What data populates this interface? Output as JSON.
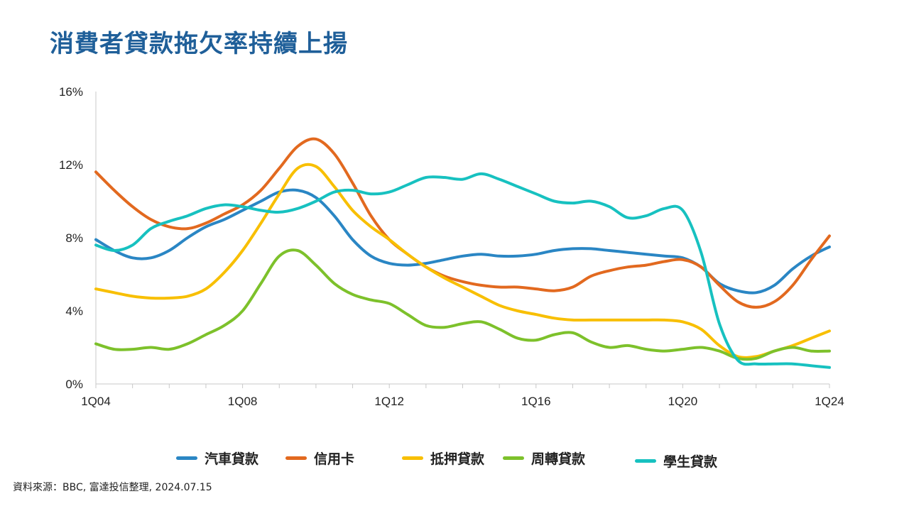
{
  "title": "消費者貸款拖欠率持續上揚",
  "source": "資料來源：BBC, 富達投信整理, 2024.07.15",
  "colors": {
    "auto": "#2a86c4",
    "credit": "#e2691f",
    "mortgage": "#f8bf00",
    "heloc": "#7dc12b",
    "student": "#17c1c0"
  },
  "chart_data": {
    "type": "line",
    "title": "",
    "xlabel": "",
    "ylabel": "",
    "ylim": [
      0,
      16
    ],
    "xlim": [
      2004.0,
      2024.0
    ],
    "y_ticks": [
      "0%",
      "4%",
      "8%",
      "12%",
      "16%"
    ],
    "y_tick_values": [
      0,
      4,
      8,
      12,
      16
    ],
    "x_ticks": [
      "1Q04",
      "1Q08",
      "1Q12",
      "1Q16",
      "1Q20",
      "1Q24"
    ],
    "x_tick_values": [
      2004,
      2008,
      2012,
      2016,
      2020,
      2024
    ],
    "grid": false,
    "legend_position": "bottom",
    "series": [
      {
        "name": "汽車貸款",
        "color_key": "auto",
        "x": [
          2004.0,
          2004.5,
          2005.0,
          2005.5,
          2006.0,
          2006.5,
          2007.0,
          2007.5,
          2008.0,
          2008.5,
          2009.0,
          2009.5,
          2010.0,
          2010.5,
          2011.0,
          2011.5,
          2012.0,
          2012.5,
          2013.0,
          2013.5,
          2014.0,
          2014.5,
          2015.0,
          2015.5,
          2016.0,
          2016.5,
          2017.0,
          2017.5,
          2018.0,
          2018.5,
          2019.0,
          2019.5,
          2020.0,
          2020.5,
          2021.0,
          2021.5,
          2022.0,
          2022.5,
          2023.0,
          2023.5,
          2024.0
        ],
        "values": [
          7.9,
          7.3,
          6.9,
          6.9,
          7.3,
          8.0,
          8.6,
          9.0,
          9.5,
          10.0,
          10.5,
          10.6,
          10.2,
          9.2,
          7.9,
          7.0,
          6.6,
          6.5,
          6.6,
          6.8,
          7.0,
          7.1,
          7.0,
          7.0,
          7.1,
          7.3,
          7.4,
          7.4,
          7.3,
          7.2,
          7.1,
          7.0,
          6.9,
          6.4,
          5.5,
          5.1,
          5.0,
          5.4,
          6.3,
          7.0,
          7.5
        ]
      },
      {
        "name": "信用卡",
        "color_key": "credit",
        "x": [
          2004.0,
          2004.5,
          2005.0,
          2005.5,
          2006.0,
          2006.5,
          2007.0,
          2007.5,
          2008.0,
          2008.5,
          2009.0,
          2009.5,
          2010.0,
          2010.5,
          2011.0,
          2011.5,
          2012.0,
          2012.5,
          2013.0,
          2013.5,
          2014.0,
          2014.5,
          2015.0,
          2015.5,
          2016.0,
          2016.5,
          2017.0,
          2017.5,
          2018.0,
          2018.5,
          2019.0,
          2019.5,
          2020.0,
          2020.5,
          2021.0,
          2021.5,
          2022.0,
          2022.5,
          2023.0,
          2023.5,
          2024.0
        ],
        "values": [
          11.6,
          10.6,
          9.7,
          9.0,
          8.6,
          8.5,
          8.8,
          9.3,
          9.8,
          10.6,
          11.8,
          13.0,
          13.4,
          12.6,
          11.0,
          9.2,
          7.9,
          7.1,
          6.4,
          5.9,
          5.6,
          5.4,
          5.3,
          5.3,
          5.2,
          5.1,
          5.3,
          5.9,
          6.2,
          6.4,
          6.5,
          6.7,
          6.8,
          6.4,
          5.4,
          4.5,
          4.2,
          4.5,
          5.4,
          6.8,
          8.1
        ]
      },
      {
        "name": "抵押貸款",
        "color_key": "mortgage",
        "x": [
          2004.0,
          2004.5,
          2005.0,
          2005.5,
          2006.0,
          2006.5,
          2007.0,
          2007.5,
          2008.0,
          2008.5,
          2009.0,
          2009.5,
          2010.0,
          2010.5,
          2011.0,
          2011.5,
          2012.0,
          2012.5,
          2013.0,
          2013.5,
          2014.0,
          2014.5,
          2015.0,
          2015.5,
          2016.0,
          2016.5,
          2017.0,
          2017.5,
          2018.0,
          2018.5,
          2019.0,
          2019.5,
          2020.0,
          2020.5,
          2021.0,
          2021.5,
          2022.0,
          2022.5,
          2023.0,
          2023.5,
          2024.0
        ],
        "values": [
          5.2,
          5.0,
          4.8,
          4.7,
          4.7,
          4.8,
          5.2,
          6.1,
          7.3,
          8.8,
          10.4,
          11.8,
          11.9,
          10.8,
          9.5,
          8.6,
          7.9,
          7.1,
          6.4,
          5.8,
          5.3,
          4.8,
          4.3,
          4.0,
          3.8,
          3.6,
          3.5,
          3.5,
          3.5,
          3.5,
          3.5,
          3.5,
          3.4,
          3.0,
          2.1,
          1.5,
          1.5,
          1.8,
          2.1,
          2.5,
          2.9
        ]
      },
      {
        "name": "周轉貸款",
        "color_key": "heloc",
        "x": [
          2004.0,
          2004.5,
          2005.0,
          2005.5,
          2006.0,
          2006.5,
          2007.0,
          2007.5,
          2008.0,
          2008.5,
          2009.0,
          2009.5,
          2010.0,
          2010.5,
          2011.0,
          2011.5,
          2012.0,
          2012.5,
          2013.0,
          2013.5,
          2014.0,
          2014.5,
          2015.0,
          2015.5,
          2016.0,
          2016.5,
          2017.0,
          2017.5,
          2018.0,
          2018.5,
          2019.0,
          2019.5,
          2020.0,
          2020.5,
          2021.0,
          2021.5,
          2022.0,
          2022.5,
          2023.0,
          2023.5,
          2024.0
        ],
        "values": [
          2.2,
          1.9,
          1.9,
          2.0,
          1.9,
          2.2,
          2.7,
          3.2,
          4.0,
          5.5,
          7.0,
          7.3,
          6.5,
          5.5,
          4.9,
          4.6,
          4.4,
          3.8,
          3.2,
          3.1,
          3.3,
          3.4,
          3.0,
          2.5,
          2.4,
          2.7,
          2.8,
          2.3,
          2.0,
          2.1,
          1.9,
          1.8,
          1.9,
          2.0,
          1.8,
          1.4,
          1.4,
          1.8,
          2.0,
          1.8,
          1.8
        ]
      },
      {
        "name": "學生貸款",
        "color_key": "student",
        "x": [
          2004.0,
          2004.5,
          2005.0,
          2005.5,
          2006.0,
          2006.5,
          2007.0,
          2007.5,
          2008.0,
          2008.5,
          2009.0,
          2009.5,
          2010.0,
          2010.5,
          2011.0,
          2011.5,
          2012.0,
          2012.5,
          2013.0,
          2013.5,
          2014.0,
          2014.5,
          2015.0,
          2015.5,
          2016.0,
          2016.5,
          2017.0,
          2017.5,
          2018.0,
          2018.5,
          2019.0,
          2019.5,
          2020.0,
          2020.5,
          2021.0,
          2021.5,
          2022.0,
          2022.5,
          2023.0,
          2023.5,
          2024.0
        ],
        "values": [
          7.6,
          7.3,
          7.6,
          8.5,
          8.9,
          9.2,
          9.6,
          9.8,
          9.7,
          9.5,
          9.4,
          9.6,
          10.0,
          10.5,
          10.6,
          10.4,
          10.5,
          10.9,
          11.3,
          11.3,
          11.2,
          11.5,
          11.2,
          10.8,
          10.4,
          10.0,
          9.9,
          10.0,
          9.7,
          9.1,
          9.2,
          9.6,
          9.5,
          7.2,
          3.3,
          1.3,
          1.1,
          1.1,
          1.1,
          1.0,
          0.9
        ]
      }
    ]
  }
}
